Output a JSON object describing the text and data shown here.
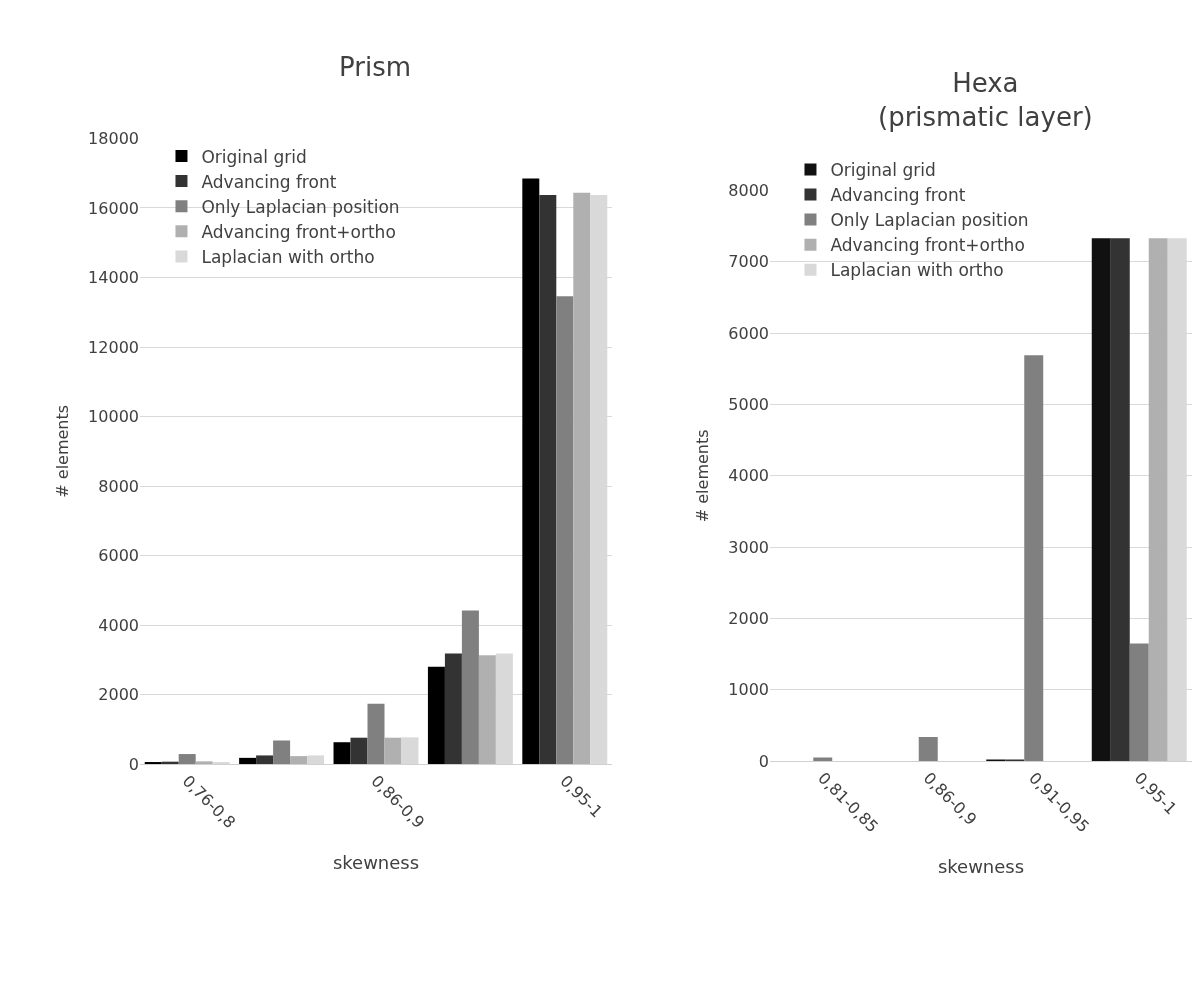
{
  "chart_data": [
    {
      "type": "bar",
      "title": "Prism",
      "xlabel": "skewness",
      "ylabel": "# elements",
      "categories": [
        "0,76-0,8",
        null,
        "0,86-0,9",
        null,
        "0,95-1"
      ],
      "ylim": [
        0,
        18000
      ],
      "yticks": [
        0,
        2000,
        4000,
        6000,
        8000,
        10000,
        12000,
        14000,
        16000,
        18000
      ],
      "grid": "y",
      "legend": "top left",
      "series": [
        {
          "name": "Original grid",
          "color": "#000000",
          "values": [
            60,
            180,
            630,
            2800,
            16850
          ]
        },
        {
          "name": "Advancing front",
          "color": "#333333",
          "values": [
            70,
            250,
            760,
            3180,
            16370
          ]
        },
        {
          "name": "Only Laplacian position",
          "color": "#808080",
          "values": [
            290,
            680,
            1740,
            4420,
            13460
          ]
        },
        {
          "name": "Advancing front+ortho",
          "color": "#b0b0b0",
          "values": [
            80,
            230,
            760,
            3130,
            16440
          ]
        },
        {
          "name": "Laplacian with ortho",
          "color": "#d9d9d9",
          "values": [
            60,
            250,
            770,
            3180,
            16370
          ]
        }
      ]
    },
    {
      "type": "bar",
      "title": "Hexa\n(prismatic layer)",
      "xlabel": "skewness",
      "ylabel": "# elements",
      "categories": [
        "0,81-0,85",
        "0,86-0,9",
        "0,91-0,95",
        "0,95-1"
      ],
      "ylim": [
        0,
        8000
      ],
      "yticks": [
        0,
        1000,
        2000,
        3000,
        4000,
        5000,
        6000,
        7000,
        8000
      ],
      "grid": "y",
      "legend": "top left",
      "series": [
        {
          "name": "Original grid",
          "color": "#111111",
          "values": [
            0,
            0,
            20,
            7330
          ]
        },
        {
          "name": "Advancing front",
          "color": "#333333",
          "values": [
            0,
            0,
            20,
            7330
          ]
        },
        {
          "name": "Only Laplacian position",
          "color": "#808080",
          "values": [
            50,
            340,
            5690,
            1650
          ]
        },
        {
          "name": "Advancing front+ortho",
          "color": "#b0b0b0",
          "values": [
            0,
            0,
            0,
            7330
          ]
        },
        {
          "name": "Laplacian with ortho",
          "color": "#d9d9d9",
          "values": [
            0,
            0,
            0,
            7330
          ]
        }
      ]
    }
  ]
}
